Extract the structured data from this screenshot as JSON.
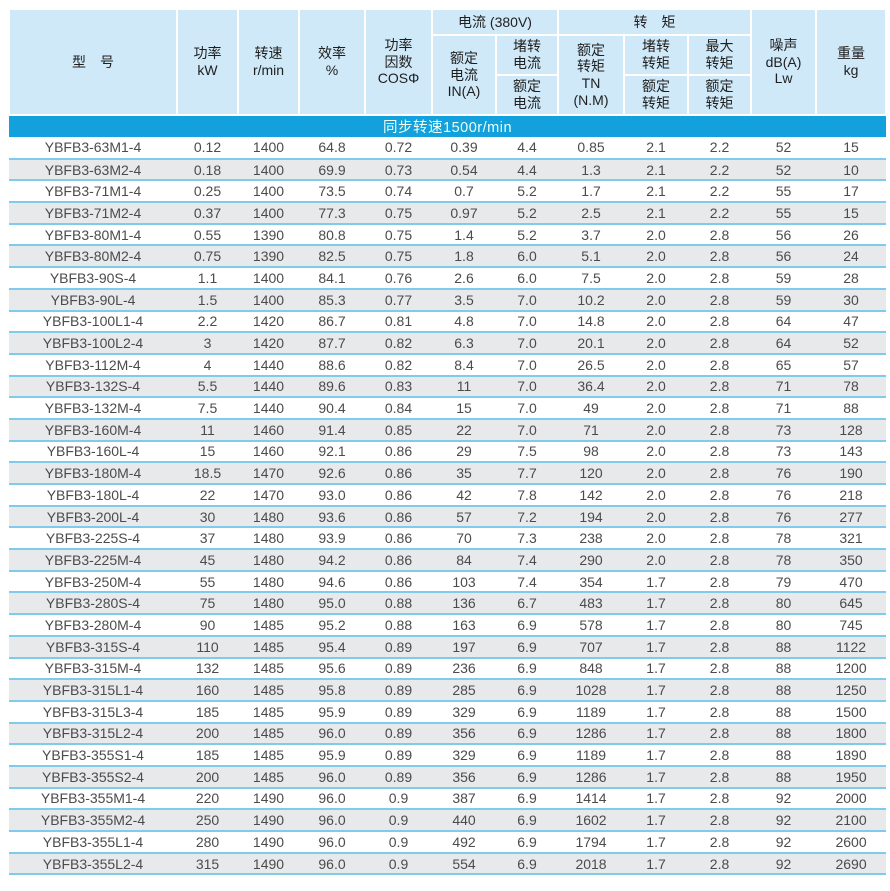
{
  "colors": {
    "header_bg": "#cfe9f8",
    "banner_bg": "#12a1dc",
    "banner_text": "#f0fff4",
    "row_alt_bg": "#e8e9eb",
    "row_divider": "#7ecbec",
    "data_text": "#4b4b4b"
  },
  "table": {
    "header": {
      "model": "型　号",
      "power": "功率\nkW",
      "speed": "转速\nr/min",
      "efficiency": "效率\n%",
      "power_factor": "功率\n因数\nCOSΦ",
      "current_group": "电流 (380V)",
      "rated_current": "额定\n电流\nIN(A)",
      "locked_current_num": "堵转\n电流",
      "locked_current_den": "额定\n电流",
      "torque_group": "转　矩",
      "rated_torque": "额定\n转矩\nTN\n(N.M)",
      "locked_torque_num": "堵转\n转矩",
      "locked_torque_den": "额定\n转矩",
      "max_torque_num": "最大\n转矩",
      "max_torque_den": "额定\n转矩",
      "noise": "噪声\ndB(A)\nLw",
      "weight": "重量\nkg"
    },
    "banner": "同步转速1500r/min",
    "column_names": [
      "model",
      "power-kw",
      "speed-rpm",
      "efficiency-pct",
      "cos-phi",
      "rated-current",
      "locked-rotor-current-ratio",
      "rated-torque",
      "locked-rotor-torque-ratio",
      "max-torque-ratio",
      "noise-db",
      "weight-kg"
    ],
    "rows": [
      [
        "YBFB3-63M1-4",
        "0.12",
        "1400",
        "64.8",
        "0.72",
        "0.39",
        "4.4",
        "0.85",
        "2.1",
        "2.2",
        "52",
        "15"
      ],
      [
        "YBFB3-63M2-4",
        "0.18",
        "1400",
        "69.9",
        "0.73",
        "0.54",
        "4.4",
        "1.3",
        "2.1",
        "2.2",
        "52",
        "10"
      ],
      [
        "YBFB3-71M1-4",
        "0.25",
        "1400",
        "73.5",
        "0.74",
        "0.7",
        "5.2",
        "1.7",
        "2.1",
        "2.2",
        "55",
        "17"
      ],
      [
        "YBFB3-71M2-4",
        "0.37",
        "1400",
        "77.3",
        "0.75",
        "0.97",
        "5.2",
        "2.5",
        "2.1",
        "2.2",
        "55",
        "15"
      ],
      [
        "YBFB3-80M1-4",
        "0.55",
        "1390",
        "80.8",
        "0.75",
        "1.4",
        "5.2",
        "3.7",
        "2.0",
        "2.8",
        "56",
        "26"
      ],
      [
        "YBFB3-80M2-4",
        "0.75",
        "1390",
        "82.5",
        "0.75",
        "1.8",
        "6.0",
        "5.1",
        "2.0",
        "2.8",
        "56",
        "24"
      ],
      [
        "YBFB3-90S-4",
        "1.1",
        "1400",
        "84.1",
        "0.76",
        "2.6",
        "6.0",
        "7.5",
        "2.0",
        "2.8",
        "59",
        "28"
      ],
      [
        "YBFB3-90L-4",
        "1.5",
        "1400",
        "85.3",
        "0.77",
        "3.5",
        "7.0",
        "10.2",
        "2.0",
        "2.8",
        "59",
        "30"
      ],
      [
        "YBFB3-100L1-4",
        "2.2",
        "1420",
        "86.7",
        "0.81",
        "4.8",
        "7.0",
        "14.8",
        "2.0",
        "2.8",
        "64",
        "47"
      ],
      [
        "YBFB3-100L2-4",
        "3",
        "1420",
        "87.7",
        "0.82",
        "6.3",
        "7.0",
        "20.1",
        "2.0",
        "2.8",
        "64",
        "52"
      ],
      [
        "YBFB3-112M-4",
        "4",
        "1440",
        "88.6",
        "0.82",
        "8.4",
        "7.0",
        "26.5",
        "2.0",
        "2.8",
        "65",
        "57"
      ],
      [
        "YBFB3-132S-4",
        "5.5",
        "1440",
        "89.6",
        "0.83",
        "11",
        "7.0",
        "36.4",
        "2.0",
        "2.8",
        "71",
        "78"
      ],
      [
        "YBFB3-132M-4",
        "7.5",
        "1440",
        "90.4",
        "0.84",
        "15",
        "7.0",
        "49",
        "2.0",
        "2.8",
        "71",
        "88"
      ],
      [
        "YBFB3-160M-4",
        "11",
        "1460",
        "91.4",
        "0.85",
        "22",
        "7.0",
        "71",
        "2.0",
        "2.8",
        "73",
        "128"
      ],
      [
        "YBFB3-160L-4",
        "15",
        "1460",
        "92.1",
        "0.86",
        "29",
        "7.5",
        "98",
        "2.0",
        "2.8",
        "73",
        "143"
      ],
      [
        "YBFB3-180M-4",
        "18.5",
        "1470",
        "92.6",
        "0.86",
        "35",
        "7.7",
        "120",
        "2.0",
        "2.8",
        "76",
        "190"
      ],
      [
        "YBFB3-180L-4",
        "22",
        "1470",
        "93.0",
        "0.86",
        "42",
        "7.8",
        "142",
        "2.0",
        "2.8",
        "76",
        "218"
      ],
      [
        "YBFB3-200L-4",
        "30",
        "1480",
        "93.6",
        "0.86",
        "57",
        "7.2",
        "194",
        "2.0",
        "2.8",
        "76",
        "277"
      ],
      [
        "YBFB3-225S-4",
        "37",
        "1480",
        "93.9",
        "0.86",
        "70",
        "7.3",
        "238",
        "2.0",
        "2.8",
        "78",
        "321"
      ],
      [
        "YBFB3-225M-4",
        "45",
        "1480",
        "94.2",
        "0.86",
        "84",
        "7.4",
        "290",
        "2.0",
        "2.8",
        "78",
        "350"
      ],
      [
        "YBFB3-250M-4",
        "55",
        "1480",
        "94.6",
        "0.86",
        "103",
        "7.4",
        "354",
        "1.7",
        "2.8",
        "79",
        "470"
      ],
      [
        "YBFB3-280S-4",
        "75",
        "1480",
        "95.0",
        "0.88",
        "136",
        "6.7",
        "483",
        "1.7",
        "2.8",
        "80",
        "645"
      ],
      [
        "YBFB3-280M-4",
        "90",
        "1485",
        "95.2",
        "0.88",
        "163",
        "6.9",
        "578",
        "1.7",
        "2.8",
        "80",
        "745"
      ],
      [
        "YBFB3-315S-4",
        "110",
        "1485",
        "95.4",
        "0.89",
        "197",
        "6.9",
        "707",
        "1.7",
        "2.8",
        "88",
        "1122"
      ],
      [
        "YBFB3-315M-4",
        "132",
        "1485",
        "95.6",
        "0.89",
        "236",
        "6.9",
        "848",
        "1.7",
        "2.8",
        "88",
        "1200"
      ],
      [
        "YBFB3-315L1-4",
        "160",
        "1485",
        "95.8",
        "0.89",
        "285",
        "6.9",
        "1028",
        "1.7",
        "2.8",
        "88",
        "1250"
      ],
      [
        "YBFB3-315L3-4",
        "185",
        "1485",
        "95.9",
        "0.89",
        "329",
        "6.9",
        "1189",
        "1.7",
        "2.8",
        "88",
        "1500"
      ],
      [
        "YBFB3-315L2-4",
        "200",
        "1485",
        "96.0",
        "0.89",
        "356",
        "6.9",
        "1286",
        "1.7",
        "2.8",
        "88",
        "1800"
      ],
      [
        "YBFB3-355S1-4",
        "185",
        "1485",
        "95.9",
        "0.89",
        "329",
        "6.9",
        "1189",
        "1.7",
        "2.8",
        "88",
        "1890"
      ],
      [
        "YBFB3-355S2-4",
        "200",
        "1485",
        "96.0",
        "0.89",
        "356",
        "6.9",
        "1286",
        "1.7",
        "2.8",
        "88",
        "1950"
      ],
      [
        "YBFB3-355M1-4",
        "220",
        "1490",
        "96.0",
        "0.9",
        "387",
        "6.9",
        "1414",
        "1.7",
        "2.8",
        "92",
        "2000"
      ],
      [
        "YBFB3-355M2-4",
        "250",
        "1490",
        "96.0",
        "0.9",
        "440",
        "6.9",
        "1602",
        "1.7",
        "2.8",
        "92",
        "2100"
      ],
      [
        "YBFB3-355L1-4",
        "280",
        "1490",
        "96.0",
        "0.9",
        "492",
        "6.9",
        "1794",
        "1.7",
        "2.8",
        "92",
        "2600"
      ],
      [
        "YBFB3-355L2-4",
        "315",
        "1490",
        "96.0",
        "0.9",
        "554",
        "6.9",
        "2018",
        "1.7",
        "2.8",
        "92",
        "2690"
      ]
    ]
  }
}
